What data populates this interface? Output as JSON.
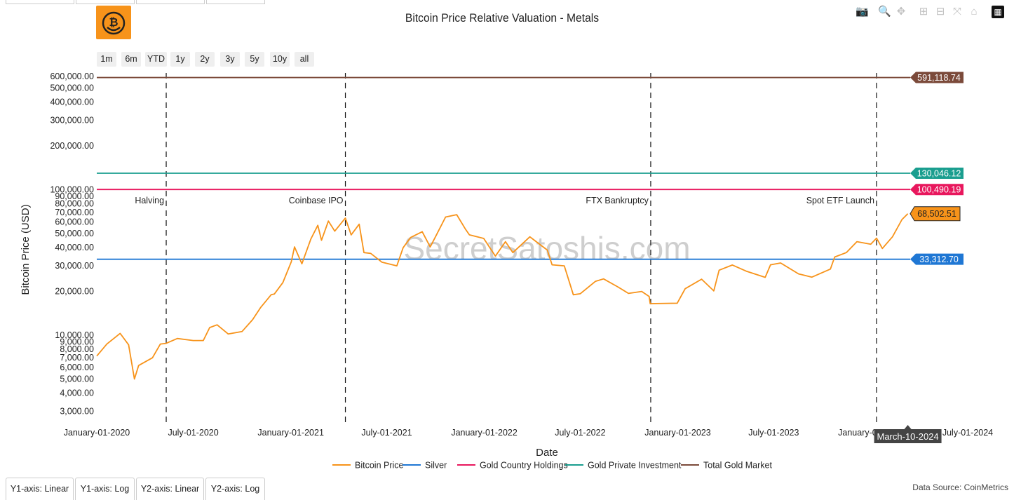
{
  "app": {
    "title": "Bitcoin Price Relative Valuation - Metals",
    "watermark": "SecretSatoshis.com",
    "data_source": "Data Source: CoinMetrics",
    "logo_icon": "bitcoin-smiley-logo-icon"
  },
  "modebar": [
    {
      "name": "camera-icon",
      "glyph": "📷"
    },
    {
      "name": "zoom-icon",
      "glyph": "🔍"
    },
    {
      "name": "pan-icon",
      "glyph": "✥"
    },
    {
      "name": "zoom-in-icon",
      "glyph": "⊞"
    },
    {
      "name": "zoom-out-icon",
      "glyph": "⊟"
    },
    {
      "name": "autoscale-icon",
      "glyph": "⤧"
    },
    {
      "name": "reset-axes-icon",
      "glyph": "⌂"
    },
    {
      "name": "plotly-logo-icon",
      "glyph": "▦"
    }
  ],
  "range_buttons": [
    "1m",
    "6m",
    "YTD",
    "1y",
    "2y",
    "3y",
    "5y",
    "10y",
    "all"
  ],
  "axis_tabs": [
    "Y1-axis: Linear",
    "Y1-axis: Log",
    "Y2-axis: Linear",
    "Y2-axis: Log"
  ],
  "hover_label": "March-10-2024",
  "colors": {
    "bitcoin": "#f7931a",
    "silver": "#1f77d4",
    "gold_country": "#e8175d",
    "gold_private": "#1a9e8f",
    "gold_total": "#7b4a3a",
    "accent_logo": "#f7931a"
  },
  "chart_data": {
    "type": "line",
    "title": "Bitcoin Price Relative Valuation - Metals",
    "xlabel": "Date",
    "ylabel": "Bitcoin Price (USD)",
    "yscale": "log",
    "ylim": [
      2500,
      650000
    ],
    "xlim": [
      "2020-01-01",
      "2024-07-01"
    ],
    "x_ticks": [
      "January-01-2020",
      "July-01-2020",
      "January-01-2021",
      "July-01-2021",
      "January-01-2022",
      "July-01-2022",
      "January-01-2023",
      "July-01-2023",
      "January-01-2024",
      "July-01-2024"
    ],
    "x_tick_dates": [
      "2020-01-01",
      "2020-07-01",
      "2021-01-01",
      "2021-07-01",
      "2022-01-01",
      "2022-07-01",
      "2023-01-01",
      "2023-07-01",
      "2024-01-01",
      "2024-07-01"
    ],
    "y_ticks": [
      {
        "label": "3,000.00",
        "value": 3000
      },
      {
        "label": "4,000.00",
        "value": 4000
      },
      {
        "label": "5,000.00",
        "value": 5000
      },
      {
        "label": "6,000.00",
        "value": 6000
      },
      {
        "label": "7,000.00",
        "value": 7000
      },
      {
        "label": "8,000.00",
        "value": 8000
      },
      {
        "label": "9,000.00",
        "value": 9000
      },
      {
        "label": "10,000.00",
        "value": 10000
      },
      {
        "label": "20,000.00",
        "value": 20000
      },
      {
        "label": "30,000.00",
        "value": 30000
      },
      {
        "label": "40,000.00",
        "value": 40000
      },
      {
        "label": "50,000.00",
        "value": 50000
      },
      {
        "label": "60,000.00",
        "value": 60000
      },
      {
        "label": "70,000.00",
        "value": 70000
      },
      {
        "label": "80,000.00",
        "value": 80000
      },
      {
        "label": "90,000.00",
        "value": 90000
      },
      {
        "label": "100,000.00",
        "value": 100000
      },
      {
        "label": "200,000.00",
        "value": 200000
      },
      {
        "label": "300,000.00",
        "value": 300000
      },
      {
        "label": "400,000.00",
        "value": 400000
      },
      {
        "label": "500,000.00",
        "value": 500000
      },
      {
        "label": "600,000.00",
        "value": 600000
      }
    ],
    "events": [
      {
        "label": "Halving",
        "date": "2020-05-11"
      },
      {
        "label": "Coinbase IPO",
        "date": "2021-04-14"
      },
      {
        "label": "FTX Bankruptcy",
        "date": "2022-11-11"
      },
      {
        "label": "Spot ETF Launch",
        "date": "2024-01-11"
      }
    ],
    "legend_position": "bottom",
    "series": [
      {
        "name": "Bitcoin Price",
        "key": "bitcoin",
        "last_label": "68,502.51",
        "points": [
          [
            "2020-01-01",
            7200
          ],
          [
            "2020-01-20",
            8700
          ],
          [
            "2020-02-14",
            10300
          ],
          [
            "2020-03-01",
            8600
          ],
          [
            "2020-03-12",
            5000
          ],
          [
            "2020-03-20",
            6200
          ],
          [
            "2020-04-15",
            7000
          ],
          [
            "2020-04-30",
            8700
          ],
          [
            "2020-05-11",
            8800
          ],
          [
            "2020-06-01",
            9500
          ],
          [
            "2020-07-01",
            9200
          ],
          [
            "2020-07-20",
            9200
          ],
          [
            "2020-08-01",
            11300
          ],
          [
            "2020-08-15",
            11800
          ],
          [
            "2020-09-05",
            10200
          ],
          [
            "2020-10-01",
            10600
          ],
          [
            "2020-10-21",
            12800
          ],
          [
            "2020-11-05",
            15500
          ],
          [
            "2020-11-25",
            19000
          ],
          [
            "2020-12-01",
            19200
          ],
          [
            "2020-12-17",
            23000
          ],
          [
            "2021-01-02",
            32000
          ],
          [
            "2021-01-08",
            40500
          ],
          [
            "2021-01-22",
            31000
          ],
          [
            "2021-02-08",
            46000
          ],
          [
            "2021-02-21",
            57000
          ],
          [
            "2021-02-28",
            45000
          ],
          [
            "2021-03-13",
            61000
          ],
          [
            "2021-03-25",
            52000
          ],
          [
            "2021-04-14",
            64000
          ],
          [
            "2021-04-25",
            49000
          ],
          [
            "2021-05-10",
            58000
          ],
          [
            "2021-05-19",
            37000
          ],
          [
            "2021-06-01",
            36500
          ],
          [
            "2021-06-22",
            31800
          ],
          [
            "2021-07-20",
            30000
          ],
          [
            "2021-08-01",
            40000
          ],
          [
            "2021-08-15",
            47000
          ],
          [
            "2021-09-06",
            51500
          ],
          [
            "2021-09-21",
            40500
          ],
          [
            "2021-10-01",
            47500
          ],
          [
            "2021-10-20",
            65000
          ],
          [
            "2021-11-10",
            67500
          ],
          [
            "2021-11-26",
            54000
          ],
          [
            "2021-12-04",
            49000
          ],
          [
            "2021-12-31",
            46300
          ],
          [
            "2022-01-22",
            35000
          ],
          [
            "2022-02-10",
            44000
          ],
          [
            "2022-02-24",
            37000
          ],
          [
            "2022-03-28",
            47500
          ],
          [
            "2022-04-30",
            38500
          ],
          [
            "2022-05-09",
            30500
          ],
          [
            "2022-06-01",
            30000
          ],
          [
            "2022-06-18",
            19000
          ],
          [
            "2022-07-01",
            19300
          ],
          [
            "2022-07-30",
            23500
          ],
          [
            "2022-08-14",
            24400
          ],
          [
            "2022-09-10",
            21500
          ],
          [
            "2022-09-30",
            19400
          ],
          [
            "2022-10-25",
            20000
          ],
          [
            "2022-11-08",
            18500
          ],
          [
            "2022-11-10",
            16500
          ],
          [
            "2022-12-31",
            16600
          ],
          [
            "2023-01-15",
            20900
          ],
          [
            "2023-02-15",
            24300
          ],
          [
            "2023-03-10",
            20200
          ],
          [
            "2023-03-20",
            28000
          ],
          [
            "2023-04-14",
            30400
          ],
          [
            "2023-05-10",
            27600
          ],
          [
            "2023-06-15",
            25000
          ],
          [
            "2023-06-25",
            30500
          ],
          [
            "2023-07-14",
            31400
          ],
          [
            "2023-08-17",
            26400
          ],
          [
            "2023-09-11",
            25100
          ],
          [
            "2023-10-16",
            28500
          ],
          [
            "2023-10-24",
            34500
          ],
          [
            "2023-11-15",
            37000
          ],
          [
            "2023-12-05",
            44000
          ],
          [
            "2023-12-31",
            42300
          ],
          [
            "2024-01-11",
            46500
          ],
          [
            "2024-01-22",
            39500
          ],
          [
            "2024-02-10",
            47500
          ],
          [
            "2024-02-28",
            62500
          ],
          [
            "2024-03-10",
            68502.51
          ]
        ]
      },
      {
        "name": "Silver",
        "key": "silver",
        "value": 33312.7,
        "last_label": "33,312.70"
      },
      {
        "name": "Gold Country Holdings",
        "key": "gold_country",
        "value": 100490.19,
        "last_label": "100,490.19"
      },
      {
        "name": "Gold Private Investment",
        "key": "gold_private",
        "value": 130046.12,
        "last_label": "130,046.12"
      },
      {
        "name": "Total Gold Market",
        "key": "gold_total",
        "value": 591118.74,
        "last_label": "591,118.74"
      }
    ]
  }
}
